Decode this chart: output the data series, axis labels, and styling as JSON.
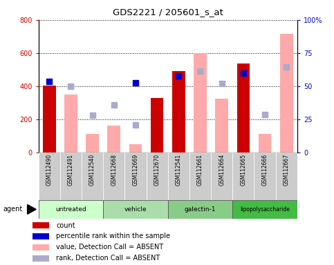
{
  "title": "GDS2221 / 205601_s_at",
  "samples": [
    "GSM112490",
    "GSM112491",
    "GSM112540",
    "GSM112668",
    "GSM112669",
    "GSM112670",
    "GSM112541",
    "GSM112661",
    "GSM112664",
    "GSM112665",
    "GSM112666",
    "GSM112667"
  ],
  "group_defs": [
    {
      "label": "untreated",
      "start": 0,
      "end": 2,
      "color": "#ccffcc"
    },
    {
      "label": "vehicle",
      "start": 3,
      "end": 5,
      "color": "#aaddaa"
    },
    {
      "label": "galectin-1",
      "start": 6,
      "end": 8,
      "color": "#88cc88"
    },
    {
      "label": "lipopolysaccharide",
      "start": 9,
      "end": 11,
      "color": "#44bb44"
    }
  ],
  "count_values": [
    405,
    0,
    0,
    0,
    0,
    330,
    490,
    0,
    0,
    535,
    0,
    0
  ],
  "count_present": [
    true,
    false,
    false,
    false,
    false,
    true,
    true,
    false,
    false,
    true,
    false,
    false
  ],
  "absent_value_bars": [
    0,
    350,
    110,
    160,
    50,
    0,
    0,
    600,
    325,
    0,
    110,
    715
  ],
  "absent_rank_dots_y": [
    0,
    400,
    225,
    285,
    165,
    0,
    0,
    490,
    415,
    0,
    230,
    515
  ],
  "percentile_rank_dots_y": [
    430,
    0,
    0,
    0,
    420,
    0,
    460,
    0,
    0,
    480,
    0,
    0
  ],
  "bar_color_count": "#cc0000",
  "bar_color_absent": "#ffaaaa",
  "dot_color_rank": "#aaaacc",
  "dot_color_percentile": "#0000cc",
  "ylim": [
    0,
    800
  ],
  "yticks_left": [
    0,
    200,
    400,
    600,
    800
  ],
  "ytick_labels_left": [
    "0",
    "200",
    "400",
    "600",
    "800"
  ],
  "yticks_right": [
    0,
    25,
    50,
    75,
    100
  ],
  "ytick_labels_right": [
    "0",
    "25",
    "50",
    "75",
    "100%"
  ],
  "left_axis_color": "#cc0000",
  "right_axis_color": "#0000cc",
  "legend_items": [
    {
      "color": "#cc0000",
      "label": "count"
    },
    {
      "color": "#0000cc",
      "label": "percentile rank within the sample"
    },
    {
      "color": "#ffaaaa",
      "label": "value, Detection Call = ABSENT"
    },
    {
      "color": "#aaaacc",
      "label": "rank, Detection Call = ABSENT"
    }
  ]
}
